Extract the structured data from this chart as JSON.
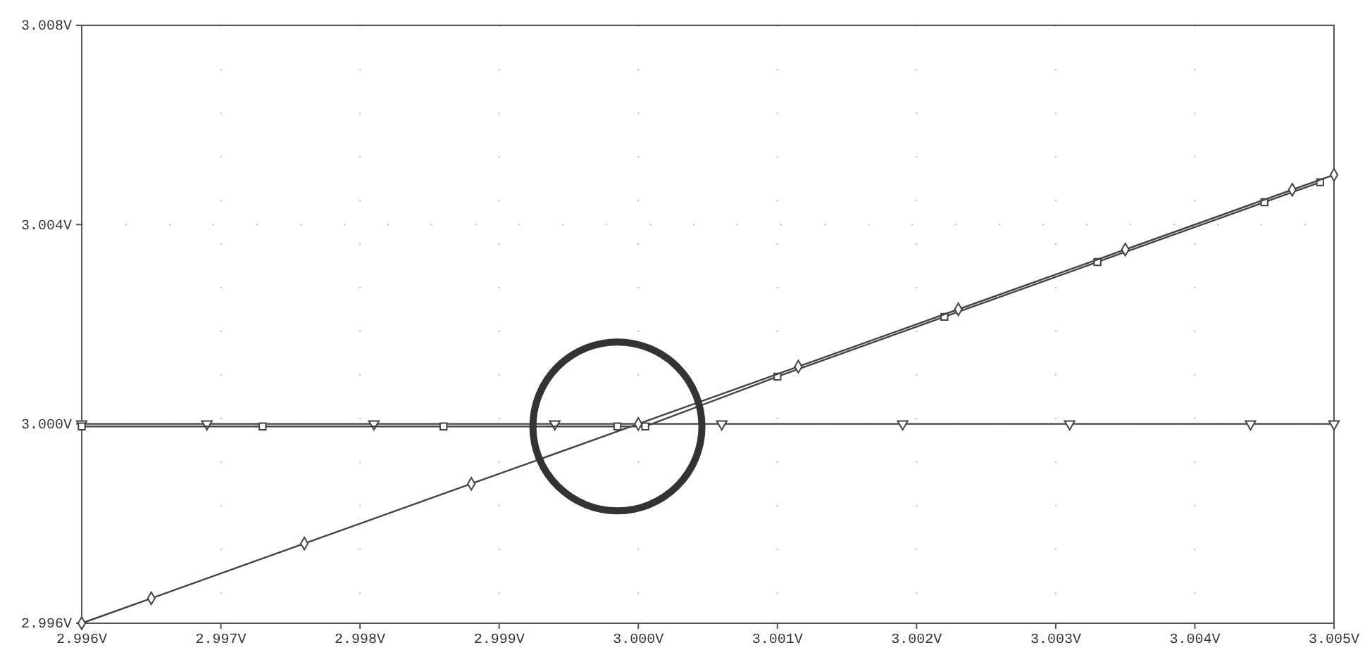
{
  "chart_data": {
    "type": "line",
    "xlim": [
      2.996,
      3.005
    ],
    "ylim": [
      2.996,
      3.008
    ],
    "xticks": [
      {
        "value": 2.996,
        "label": "2.996V"
      },
      {
        "value": 2.997,
        "label": "2.997V"
      },
      {
        "value": 2.998,
        "label": "2.998V"
      },
      {
        "value": 2.999,
        "label": "2.999V"
      },
      {
        "value": 3.0,
        "label": "3.000V"
      },
      {
        "value": 3.001,
        "label": "3.001V"
      },
      {
        "value": 3.002,
        "label": "3.002V"
      },
      {
        "value": 3.003,
        "label": "3.003V"
      },
      {
        "value": 3.004,
        "label": "3.004V"
      },
      {
        "value": 3.005,
        "label": "3.005V"
      }
    ],
    "yticks": [
      {
        "value": 2.996,
        "label": "2.996V"
      },
      {
        "value": 3.0,
        "label": "3.000V"
      },
      {
        "value": 3.004,
        "label": "3.004V"
      },
      {
        "value": 3.008,
        "label": "3.008V"
      }
    ],
    "grid": true,
    "line_style": "solid",
    "series": [
      {
        "color": "#444444",
        "marker": "triangle",
        "x": [
          2.996,
          2.9969,
          2.9981,
          2.9994,
          3.0006,
          3.0019,
          3.0031,
          3.0044,
          3.005
        ],
        "values": [
          3.0,
          3.0,
          3.0,
          3.0,
          3.0,
          3.0,
          3.0,
          3.0,
          3.0
        ]
      },
      {
        "color": "#444444",
        "marker": "square",
        "x": [
          2.996,
          2.9973,
          2.9986,
          2.99985,
          3.00005,
          3.001,
          3.0022,
          3.0033,
          3.0045,
          3.0049
        ],
        "values": [
          2.99995,
          2.99995,
          2.99995,
          2.99995,
          2.99995,
          3.00095,
          3.00215,
          3.00325,
          3.00445,
          3.00485
        ]
      },
      {
        "color": "#444444",
        "marker": "diamond",
        "x": [
          2.996,
          2.9965,
          2.9976,
          2.9988,
          3.0,
          3.00115,
          3.0023,
          3.0035,
          3.0047,
          3.005
        ],
        "values": [
          2.996,
          2.9965,
          2.9976,
          2.9988,
          3.0,
          3.00115,
          3.0023,
          3.0035,
          3.0047,
          3.005
        ]
      }
    ]
  }
}
